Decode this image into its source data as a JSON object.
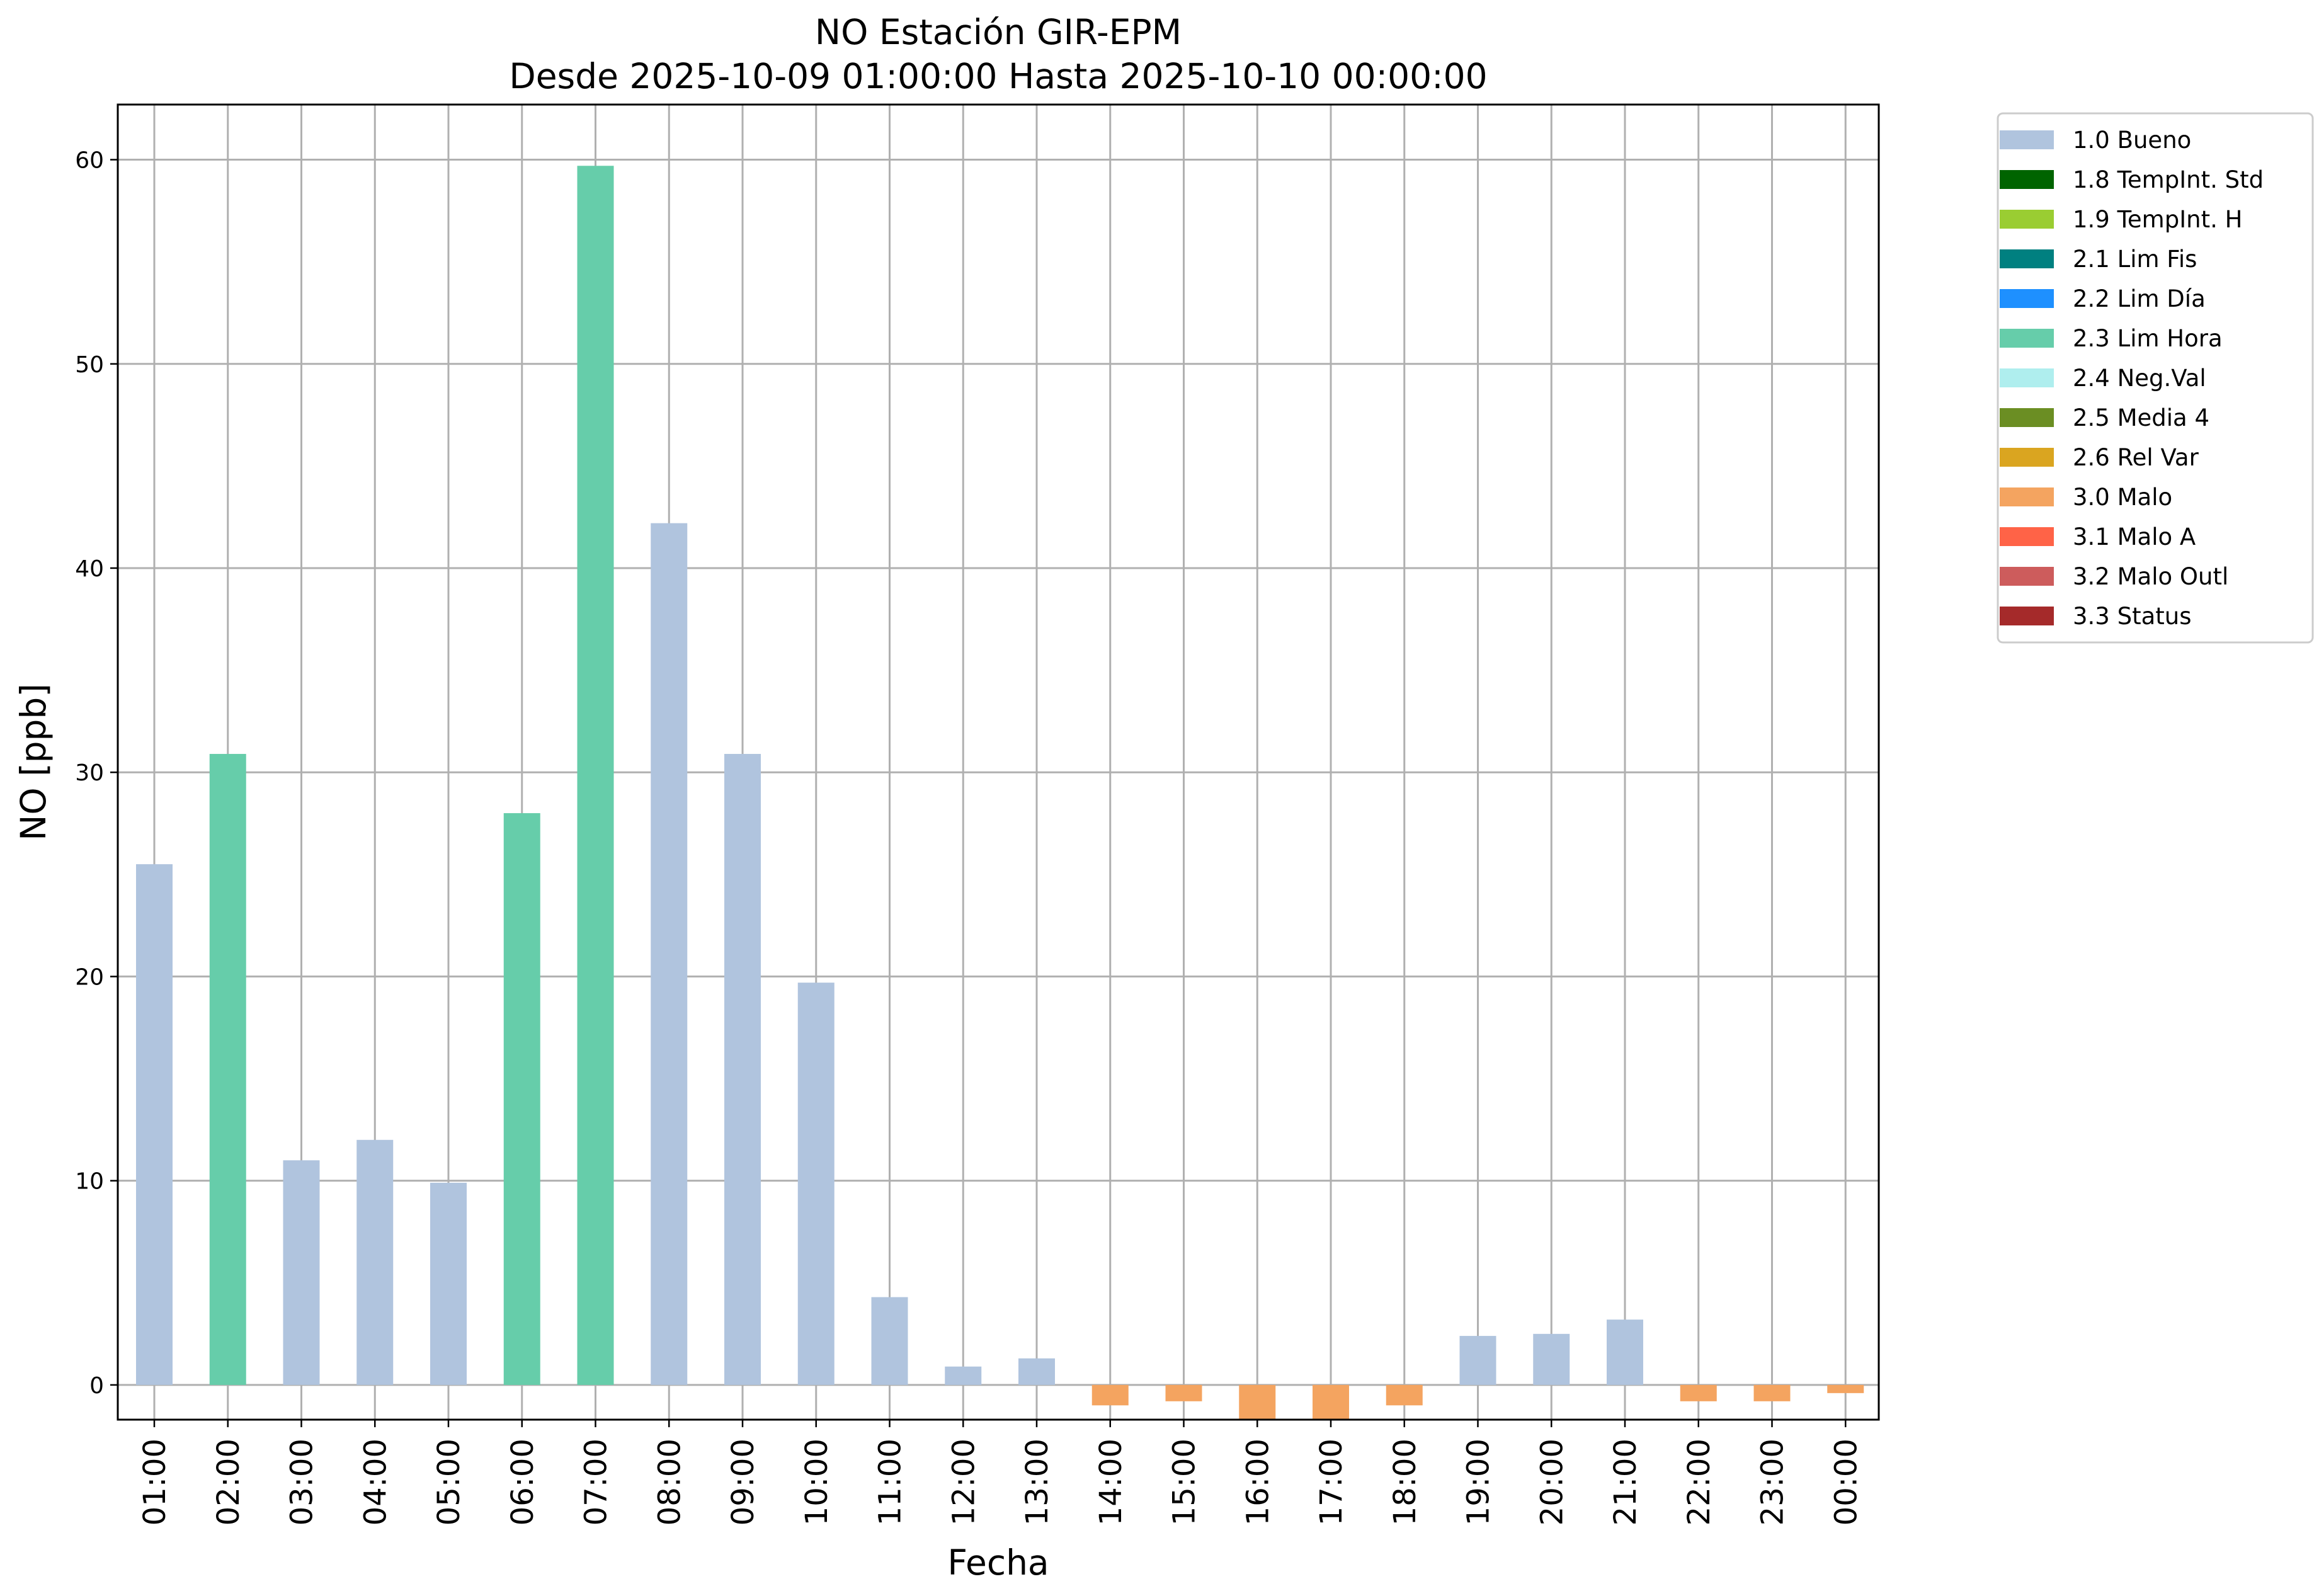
{
  "chart_data": {
    "type": "bar",
    "title": "NO Estación GIR-EPM",
    "subtitle": "Desde 2025-10-09 01:00:00 Hasta 2025-10-10 00:00:00",
    "xlabel": "Fecha",
    "ylabel": "NO [ppb]",
    "ylim": [
      -1.7,
      62.7
    ],
    "yticks": [
      0,
      10,
      20,
      30,
      40,
      50,
      60
    ],
    "grid": true,
    "legend_position": "outside-right",
    "categories": [
      "01:00",
      "02:00",
      "03:00",
      "04:00",
      "05:00",
      "06:00",
      "07:00",
      "08:00",
      "09:00",
      "10:00",
      "11:00",
      "12:00",
      "13:00",
      "14:00",
      "15:00",
      "16:00",
      "17:00",
      "18:00",
      "19:00",
      "20:00",
      "21:00",
      "22:00",
      "23:00",
      "00:00"
    ],
    "values": [
      25.5,
      30.9,
      11.0,
      12.0,
      9.9,
      28.0,
      59.7,
      42.2,
      30.9,
      19.7,
      4.3,
      0.9,
      1.3,
      -1.0,
      -0.8,
      -1.7,
      -1.7,
      -1.0,
      2.4,
      2.5,
      3.2,
      -0.8,
      -0.8,
      -0.4
    ],
    "flags": [
      "1.0 Bueno",
      "2.3 Lim Hora",
      "1.0 Bueno",
      "1.0 Bueno",
      "1.0 Bueno",
      "2.3 Lim Hora",
      "2.3 Lim Hora",
      "1.0 Bueno",
      "1.0 Bueno",
      "1.0 Bueno",
      "1.0 Bueno",
      "1.0 Bueno",
      "1.0 Bueno",
      "3.0 Malo",
      "3.0 Malo",
      "3.0 Malo",
      "3.0 Malo",
      "3.0 Malo",
      "1.0 Bueno",
      "1.0 Bueno",
      "1.0 Bueno",
      "3.0 Malo",
      "3.0 Malo",
      "3.0 Malo"
    ],
    "legend": [
      {
        "label": "1.0 Bueno",
        "color": "#b0c4de"
      },
      {
        "label": "1.8 TempInt. Std",
        "color": "#006400"
      },
      {
        "label": "1.9 TempInt. H",
        "color": "#9acd32"
      },
      {
        "label": "2.1 Lim Fis",
        "color": "#008080"
      },
      {
        "label": "2.2 Lim Día",
        "color": "#1e90ff"
      },
      {
        "label": "2.3 Lim Hora",
        "color": "#66cdaa"
      },
      {
        "label": "2.4 Neg.Val",
        "color": "#afeeee"
      },
      {
        "label": "2.5 Media 4",
        "color": "#6b8e23"
      },
      {
        "label": "2.6 Rel Var",
        "color": "#daa520"
      },
      {
        "label": "3.0 Malo",
        "color": "#f4a460"
      },
      {
        "label": "3.1 Malo A",
        "color": "#ff6347"
      },
      {
        "label": "3.2 Malo Outl",
        "color": "#cd5c5c"
      },
      {
        "label": "3.3 Status",
        "color": "#a52a2a"
      }
    ]
  }
}
